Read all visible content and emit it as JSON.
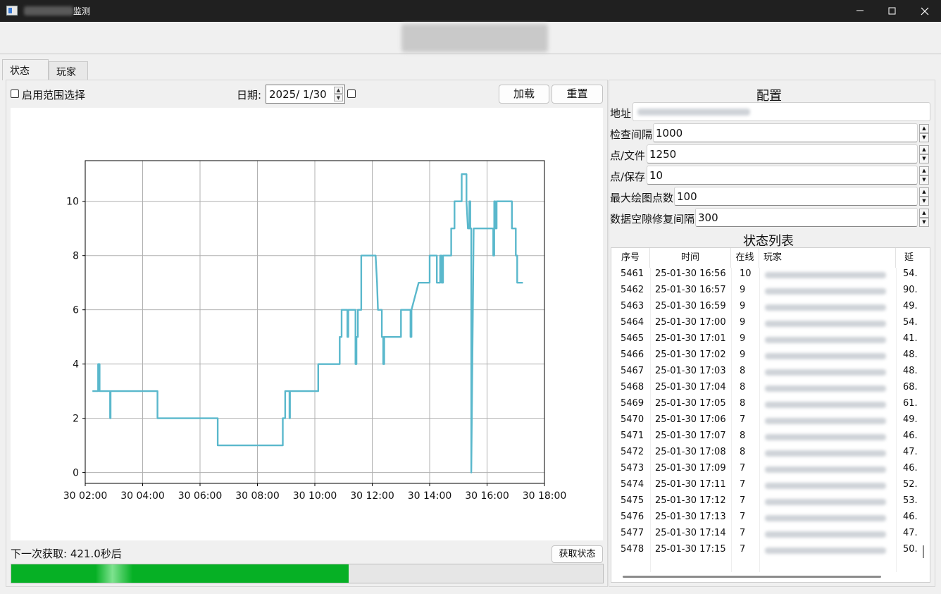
{
  "window": {
    "title": "监测"
  },
  "tabs": [
    {
      "label": "状态"
    },
    {
      "label": "玩家"
    }
  ],
  "controls": {
    "range_select_label": "启用范围选择",
    "date_label": "日期:",
    "date_value": "2025/  1/30",
    "load_button": "加载",
    "reset_button": "重置"
  },
  "status": {
    "next_fetch_text": "下一次获取: 421.0秒后",
    "fetch_button": "获取状态",
    "progress_fraction": 0.57
  },
  "config": {
    "heading": "配置",
    "address_label": "地址",
    "fields": [
      {
        "label": "检查间隔",
        "value": "1000"
      },
      {
        "label": "点/文件",
        "value": "1250"
      },
      {
        "label": "点/保存",
        "value": "10"
      },
      {
        "label": "最大绘图点数",
        "value": "100"
      },
      {
        "label": "数据空隙修复间隔",
        "value": "300"
      }
    ]
  },
  "status_list": {
    "heading": "状态列表",
    "columns": [
      "序号",
      "时间",
      "在线",
      "玩家",
      "延"
    ],
    "rows": [
      {
        "id": "5461",
        "time": "25-01-30 16:56",
        "online": "10",
        "extra": "54."
      },
      {
        "id": "5462",
        "time": "25-01-30 16:57",
        "online": "9",
        "extra": "90."
      },
      {
        "id": "5463",
        "time": "25-01-30 16:59",
        "online": "9",
        "extra": "49."
      },
      {
        "id": "5464",
        "time": "25-01-30 17:00",
        "online": "9",
        "extra": "54."
      },
      {
        "id": "5465",
        "time": "25-01-30 17:01",
        "online": "9",
        "extra": "41."
      },
      {
        "id": "5466",
        "time": "25-01-30 17:02",
        "online": "9",
        "extra": "48."
      },
      {
        "id": "5467",
        "time": "25-01-30 17:03",
        "online": "8",
        "extra": "48."
      },
      {
        "id": "5468",
        "time": "25-01-30 17:04",
        "online": "8",
        "extra": "68."
      },
      {
        "id": "5469",
        "time": "25-01-30 17:05",
        "online": "8",
        "extra": "61."
      },
      {
        "id": "5470",
        "time": "25-01-30 17:06",
        "online": "7",
        "extra": "49."
      },
      {
        "id": "5471",
        "time": "25-01-30 17:07",
        "online": "8",
        "extra": "46."
      },
      {
        "id": "5472",
        "time": "25-01-30 17:08",
        "online": "8",
        "extra": "47."
      },
      {
        "id": "5473",
        "time": "25-01-30 17:09",
        "online": "7",
        "extra": "46."
      },
      {
        "id": "5474",
        "time": "25-01-30 17:11",
        "online": "7",
        "extra": "52."
      },
      {
        "id": "5475",
        "time": "25-01-30 17:12",
        "online": "7",
        "extra": "53."
      },
      {
        "id": "5476",
        "time": "25-01-30 17:13",
        "online": "7",
        "extra": "46."
      },
      {
        "id": "5477",
        "time": "25-01-30 17:14",
        "online": "7",
        "extra": "47."
      },
      {
        "id": "5478",
        "time": "25-01-30 17:15",
        "online": "7",
        "extra": "50."
      }
    ]
  },
  "chart_data": {
    "type": "line",
    "title": "",
    "xlabel": "",
    "ylabel": "",
    "line_color": "#5ab8cc",
    "grid": true,
    "xlim": [
      "30 02:00",
      "30 18:00"
    ],
    "ylim": [
      -0.4,
      11.5
    ],
    "xticks": [
      "30 02:00",
      "30 04:00",
      "30 06:00",
      "30 08:00",
      "30 10:00",
      "30 12:00",
      "30 14:00",
      "30 16:00",
      "30 18:00"
    ],
    "yticks": [
      0,
      2,
      4,
      6,
      8,
      10
    ],
    "points": [
      [
        "30 02:15",
        3
      ],
      [
        "30 02:27",
        3
      ],
      [
        "30 02:27",
        4
      ],
      [
        "30 02:30",
        4
      ],
      [
        "30 02:30",
        3
      ],
      [
        "30 02:52",
        3
      ],
      [
        "30 02:52",
        2
      ],
      [
        "30 02:53",
        2
      ],
      [
        "30 02:53",
        3
      ],
      [
        "30 04:31",
        3
      ],
      [
        "30 04:31",
        2
      ],
      [
        "30 06:37",
        2
      ],
      [
        "30 06:37",
        1
      ],
      [
        "30 08:53",
        1
      ],
      [
        "30 08:53",
        2
      ],
      [
        "30 08:58",
        2
      ],
      [
        "30 08:58",
        3
      ],
      [
        "30 09:07",
        3
      ],
      [
        "30 09:07",
        2
      ],
      [
        "30 09:08",
        2
      ],
      [
        "30 09:08",
        3
      ],
      [
        "30 10:07",
        3
      ],
      [
        "30 10:07",
        4
      ],
      [
        "30 10:52",
        4
      ],
      [
        "30 10:52",
        5
      ],
      [
        "30 10:56",
        5
      ],
      [
        "30 10:56",
        6
      ],
      [
        "30 11:08",
        6
      ],
      [
        "30 11:08",
        5
      ],
      [
        "30 11:10",
        5
      ],
      [
        "30 11:10",
        6
      ],
      [
        "30 11:25",
        6
      ],
      [
        "30 11:25",
        4
      ],
      [
        "30 11:27",
        4
      ],
      [
        "30 11:27",
        5
      ],
      [
        "30 11:30",
        5
      ],
      [
        "30 11:30",
        6
      ],
      [
        "30 11:37",
        6
      ],
      [
        "30 11:37",
        8
      ],
      [
        "30 12:07",
        8
      ],
      [
        "30 12:10",
        7
      ],
      [
        "30 12:12",
        6
      ],
      [
        "30 12:20",
        6
      ],
      [
        "30 12:20",
        5
      ],
      [
        "30 12:23",
        5
      ],
      [
        "30 12:23",
        4
      ],
      [
        "30 12:25",
        4
      ],
      [
        "30 12:25",
        5
      ],
      [
        "30 13:00",
        5
      ],
      [
        "30 13:00",
        6
      ],
      [
        "30 13:20",
        6
      ],
      [
        "30 13:20",
        5
      ],
      [
        "30 13:22",
        5
      ],
      [
        "30 13:22",
        6
      ],
      [
        "30 13:37",
        7
      ],
      [
        "30 14:00",
        7
      ],
      [
        "30 14:00",
        8
      ],
      [
        "30 14:15",
        8
      ],
      [
        "30 14:15",
        7
      ],
      [
        "30 14:22",
        7
      ],
      [
        "30 14:22",
        8
      ],
      [
        "30 14:25",
        8
      ],
      [
        "30 14:25",
        7
      ],
      [
        "30 14:28",
        7
      ],
      [
        "30 14:28",
        8
      ],
      [
        "30 14:45",
        8
      ],
      [
        "30 14:45",
        9
      ],
      [
        "30 14:52",
        9
      ],
      [
        "30 14:52",
        10
      ],
      [
        "30 15:07",
        10
      ],
      [
        "30 15:07",
        11
      ],
      [
        "30 15:17",
        11
      ],
      [
        "30 15:17",
        10
      ],
      [
        "30 15:20",
        9
      ],
      [
        "30 15:23",
        9
      ],
      [
        "30 15:23",
        10
      ],
      [
        "30 15:25",
        10
      ],
      [
        "30 15:25",
        9
      ],
      [
        "30 15:27",
        9
      ],
      [
        "30 15:27",
        0
      ],
      [
        "30 15:32",
        9
      ],
      [
        "30 16:13",
        9
      ],
      [
        "30 16:13",
        8
      ],
      [
        "30 16:15",
        8
      ],
      [
        "30 16:15",
        10
      ],
      [
        "30 16:17",
        10
      ],
      [
        "30 16:17",
        9
      ],
      [
        "30 16:20",
        9
      ],
      [
        "30 16:20",
        10
      ],
      [
        "30 16:52",
        10
      ],
      [
        "30 16:52",
        9
      ],
      [
        "30 17:00",
        9
      ],
      [
        "30 17:00",
        8
      ],
      [
        "30 17:03",
        8
      ],
      [
        "30 17:03",
        7
      ],
      [
        "30 17:15",
        7
      ]
    ]
  }
}
